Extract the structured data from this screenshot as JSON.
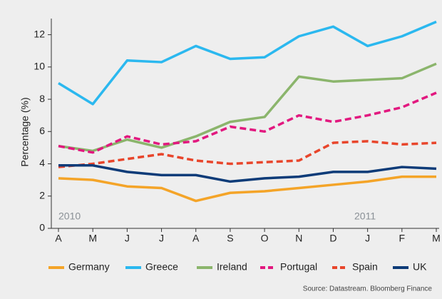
{
  "chart_data": {
    "type": "line",
    "y_label": "Percentage (%)",
    "categories": [
      "A",
      "M",
      "J",
      "J",
      "A",
      "S",
      "O",
      "N",
      "D",
      "J",
      "F",
      "M"
    ],
    "series": [
      {
        "name": "Germany",
        "color": "#f4a428",
        "style": "solid",
        "values": [
          3.1,
          3.0,
          2.6,
          2.5,
          1.7,
          2.2,
          2.3,
          2.5,
          2.7,
          2.9,
          3.2,
          3.2
        ]
      },
      {
        "name": "Greece",
        "color": "#2bb8ef",
        "style": "solid",
        "values": [
          9.0,
          7.7,
          10.4,
          10.3,
          11.3,
          10.5,
          10.6,
          11.9,
          12.5,
          11.3,
          11.9,
          12.8
        ]
      },
      {
        "name": "Ireland",
        "color": "#8bb56c",
        "style": "solid",
        "values": [
          5.1,
          4.8,
          5.5,
          5.0,
          5.7,
          6.6,
          6.9,
          9.4,
          9.1,
          9.2,
          9.3,
          10.2
        ]
      },
      {
        "name": "Portugal",
        "color": "#e2187f",
        "style": "dashed",
        "values": [
          5.1,
          4.7,
          5.7,
          5.2,
          5.4,
          6.3,
          6.0,
          7.0,
          6.6,
          7.0,
          7.5,
          8.4
        ]
      },
      {
        "name": "Spain",
        "color": "#e8452b",
        "style": "dashed",
        "values": [
          3.8,
          4.0,
          4.3,
          4.6,
          4.2,
          4.0,
          4.1,
          4.2,
          5.3,
          5.4,
          5.2,
          5.3
        ]
      },
      {
        "name": "UK",
        "color": "#0d3b78",
        "style": "solid",
        "values": [
          3.9,
          3.9,
          3.5,
          3.3,
          3.3,
          2.9,
          3.1,
          3.2,
          3.5,
          3.5,
          3.8,
          3.7
        ]
      }
    ],
    "ylim": [
      0,
      13
    ],
    "yticks": [
      0,
      2,
      4,
      6,
      8,
      10,
      12
    ],
    "annotations": [
      "2010",
      "2011"
    ],
    "source": "Source: Datastream. Bloomberg Finance"
  }
}
